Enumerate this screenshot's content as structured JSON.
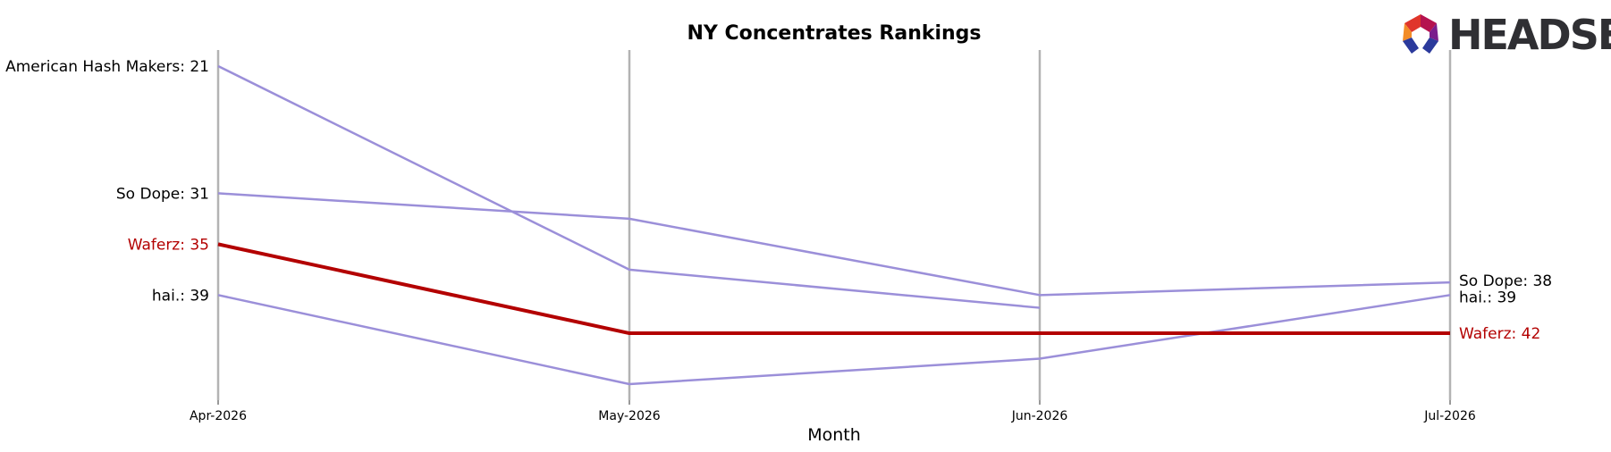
{
  "chart_data": {
    "type": "line",
    "title": "NY Concentrates Rankings",
    "xlabel": "Month",
    "ylabel": "",
    "categories": [
      "Apr-2026",
      "May-2026",
      "Jun-2026",
      "Jul-2026"
    ],
    "y_inverted": true,
    "ylim": [
      20,
      46
    ],
    "grid": "vertical lines at each month",
    "series": [
      {
        "name": "American Hash Makers",
        "values": [
          21,
          37,
          40,
          null
        ],
        "color": "#9b8fd9",
        "highlight": false
      },
      {
        "name": "So Dope",
        "values": [
          31,
          33,
          39,
          38
        ],
        "color": "#9b8fd9",
        "highlight": false
      },
      {
        "name": "Waferz",
        "values": [
          35,
          42,
          42,
          42
        ],
        "color": "#b30000",
        "highlight": true
      },
      {
        "name": "hai.",
        "values": [
          39,
          46,
          44,
          39
        ],
        "color": "#9b8fd9",
        "highlight": false
      }
    ],
    "start_labels": [
      {
        "series": "American Hash Makers",
        "text": "American Hash Makers: 21"
      },
      {
        "series": "So Dope",
        "text": "So Dope: 31"
      },
      {
        "series": "Waferz",
        "text": "Waferz: 35"
      },
      {
        "series": "hai.",
        "text": "hai.: 39"
      }
    ],
    "end_labels": [
      {
        "series": "So Dope",
        "text": "So Dope: 38"
      },
      {
        "series": "hai.",
        "text": "hai.: 39"
      },
      {
        "series": "Waferz",
        "text": "Waferz: 42"
      }
    ]
  },
  "logo": {
    "text": "HEADSET"
  },
  "colors": {
    "grid": "#b3b3b3",
    "muted_line": "#9b8fd9",
    "highlight": "#b30000"
  }
}
